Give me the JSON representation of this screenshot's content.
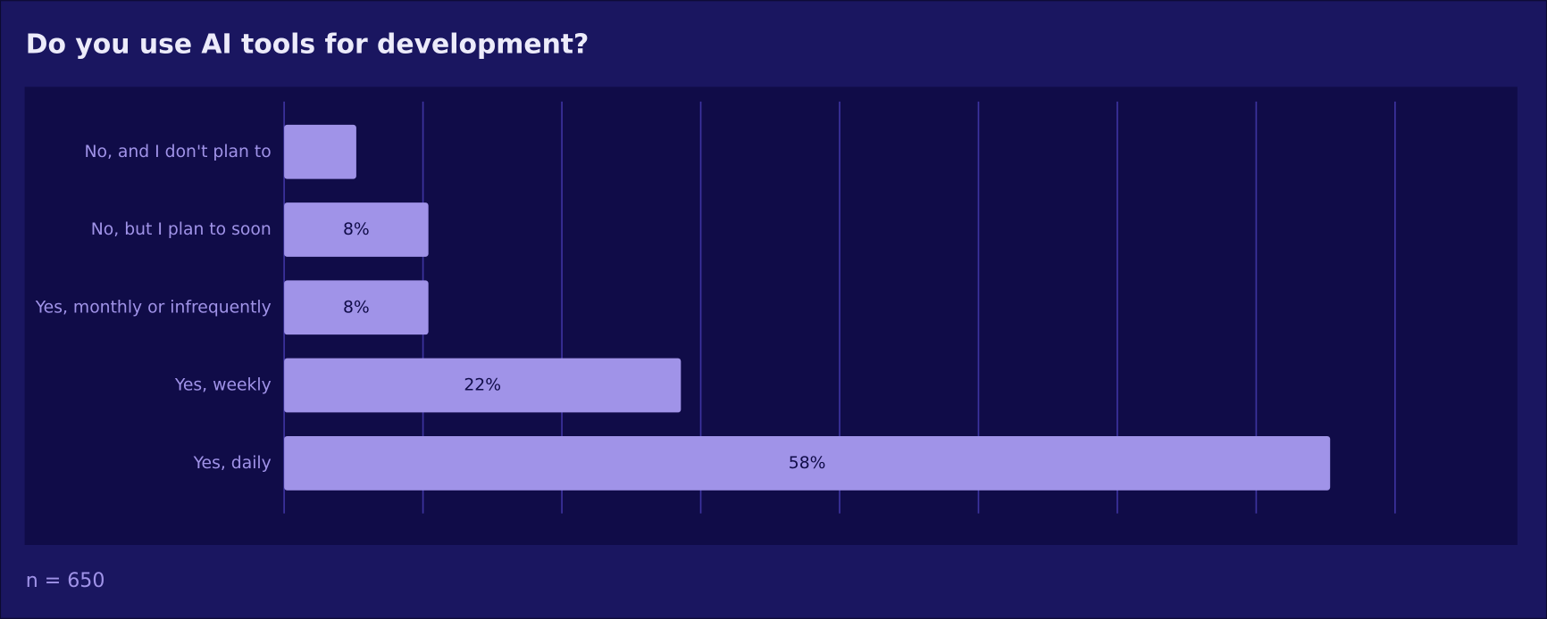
{
  "chart_data": {
    "type": "bar",
    "orientation": "horizontal",
    "title": "Do you use AI tools for development?",
    "categories": [
      "No, and I don't plan to",
      "No, but I plan to soon",
      "Yes, monthly or infrequently",
      "Yes, weekly",
      "Yes, daily"
    ],
    "values": [
      4,
      8,
      8,
      22,
      58
    ],
    "value_labels": [
      null,
      "8%",
      "8%",
      "22%",
      "58%"
    ],
    "color": "#a093e8",
    "xlim": [
      0,
      61.6
    ],
    "xticks": [
      0,
      7.7,
      15.4,
      23.1,
      30.8,
      38.5,
      46.2,
      53.9,
      61.6
    ],
    "grid": true,
    "note": "n = 650"
  }
}
